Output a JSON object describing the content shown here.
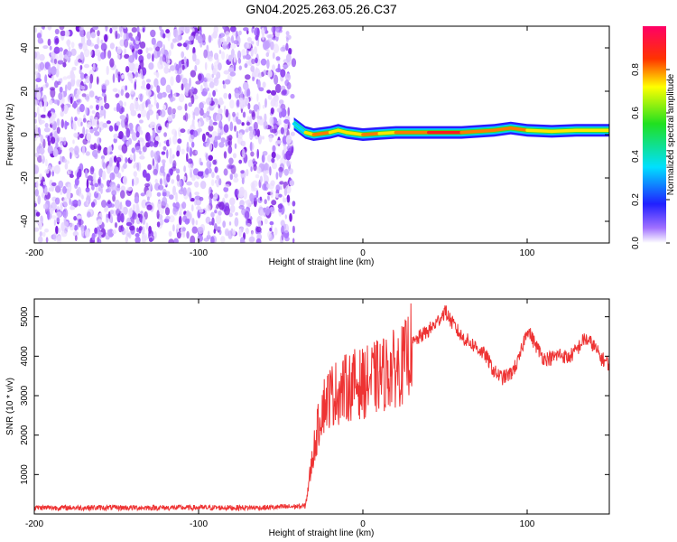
{
  "figure": {
    "title": "GN04.2025.263.05.26.C37"
  },
  "chart_data": [
    {
      "type": "heatmap",
      "xlabel": "Height of straight line (km)",
      "ylabel": "Frequency (Hz)",
      "xlim": [
        -200,
        150
      ],
      "ylim": [
        -50,
        50
      ],
      "xticks": [
        -200,
        -100,
        0,
        100
      ],
      "yticks": [
        -40,
        -20,
        0,
        20,
        40
      ],
      "colorbar": {
        "label": "Normalized spectral amplitude",
        "range": [
          0,
          1
        ],
        "ticks": [
          "0.0",
          "0.2",
          "0.4",
          "0.6",
          "0.8"
        ]
      },
      "noise_region": {
        "x_range": [
          -200,
          -42
        ],
        "amplitude": "low (≈0.0–0.15)"
      },
      "signal_band": [
        {
          "x": -42,
          "center_hz": 5,
          "amplitude": 0.15
        },
        {
          "x": -35,
          "center_hz": 1,
          "amplitude": 0.7
        },
        {
          "x": -30,
          "center_hz": 0,
          "amplitude": 0.85
        },
        {
          "x": -20,
          "center_hz": 1,
          "amplitude": 0.75
        },
        {
          "x": -15,
          "center_hz": 2,
          "amplitude": 0.8
        },
        {
          "x": -10,
          "center_hz": 1,
          "amplitude": 0.6
        },
        {
          "x": 0,
          "center_hz": 0,
          "amplitude": 0.9
        },
        {
          "x": 10,
          "center_hz": 0.5,
          "amplitude": 0.7
        },
        {
          "x": 20,
          "center_hz": 1,
          "amplitude": 0.75
        },
        {
          "x": 40,
          "center_hz": 1,
          "amplitude": 0.9
        },
        {
          "x": 60,
          "center_hz": 1,
          "amplitude": 0.95
        },
        {
          "x": 80,
          "center_hz": 2,
          "amplitude": 0.8
        },
        {
          "x": 90,
          "center_hz": 3,
          "amplitude": 0.85
        },
        {
          "x": 100,
          "center_hz": 2,
          "amplitude": 0.8
        },
        {
          "x": 115,
          "center_hz": 1.5,
          "amplitude": 0.75
        },
        {
          "x": 130,
          "center_hz": 2,
          "amplitude": 0.7
        },
        {
          "x": 150,
          "center_hz": 2,
          "amplitude": 0.7
        }
      ]
    },
    {
      "type": "line",
      "xlabel": "Height of straight line (km)",
      "ylabel": "SNR (10 * v/v)",
      "xlim": [
        -200,
        150
      ],
      "ylim": [
        0,
        5450
      ],
      "xticks": [
        -200,
        -100,
        0,
        100
      ],
      "yticks": [
        1000,
        2000,
        3000,
        4000,
        5000
      ],
      "color": "#ee3333",
      "series": [
        {
          "x": [
            -200,
            -150,
            -100,
            -60,
            -35,
            -30,
            -25,
            -20,
            -15,
            -10,
            -5,
            0,
            5,
            10,
            15,
            20,
            25,
            30,
            35,
            40,
            45,
            50,
            55,
            60,
            65,
            70,
            75,
            80,
            85,
            90,
            95,
            100,
            105,
            110,
            115,
            120,
            125,
            130,
            135,
            140,
            145,
            150
          ],
          "values": [
            160,
            160,
            160,
            160,
            200,
            1600,
            2700,
            3000,
            3100,
            3200,
            3300,
            3300,
            3400,
            3500,
            3600,
            3700,
            3800,
            4300,
            4500,
            4650,
            4850,
            5150,
            4800,
            4500,
            4350,
            4200,
            4000,
            3600,
            3450,
            3550,
            3900,
            4700,
            4300,
            3950,
            3950,
            4050,
            3950,
            4150,
            4450,
            4300,
            3950,
            3800
          ]
        }
      ]
    }
  ]
}
